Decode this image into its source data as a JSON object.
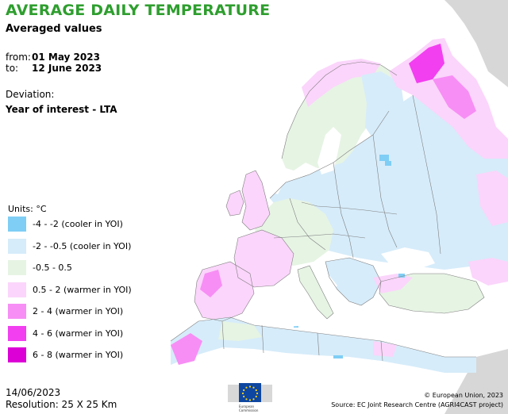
{
  "title": "AVERAGE DAILY TEMPERATURE",
  "subtitle": "Averaged values",
  "period": {
    "from_label": "from:",
    "from_value": "01 May 2023",
    "to_label": "to:",
    "to_value": "12 June 2023"
  },
  "deviation": {
    "label": "Deviation:",
    "value": "Year of interest - LTA"
  },
  "legend": {
    "units": "Units: °C",
    "items": [
      {
        "label": "-4 - -2 (cooler in YOI)",
        "color": "#7fcef5"
      },
      {
        "label": "-2 - -0.5 (cooler in YOI)",
        "color": "#d6ecfa"
      },
      {
        "label": "-0.5 - 0.5",
        "color": "#e6f4e4"
      },
      {
        "label": "0.5 - 2 (warmer in YOI)",
        "color": "#fbd5fb"
      },
      {
        "label": "2 - 4 (warmer in YOI)",
        "color": "#f78ef5"
      },
      {
        "label": "4 - 6 (warmer in YOI)",
        "color": "#f23ff0"
      },
      {
        "label": "6 - 8 (warmer in YOI)",
        "color": "#dd00d6"
      }
    ]
  },
  "footer": {
    "date": "14/06/2023",
    "resolution": "Resolution: 25 X 25 Km",
    "copyright": "© European Union, 2023",
    "source": "Source: EC Joint Research Centre (AGRI4CAST project)"
  },
  "logo": {
    "line1": "European",
    "line2": "Commission"
  },
  "colors": {
    "title": "#2e9e2e",
    "non_eu_land": "#d7d7d7",
    "borders": "#7f7f7f"
  }
}
